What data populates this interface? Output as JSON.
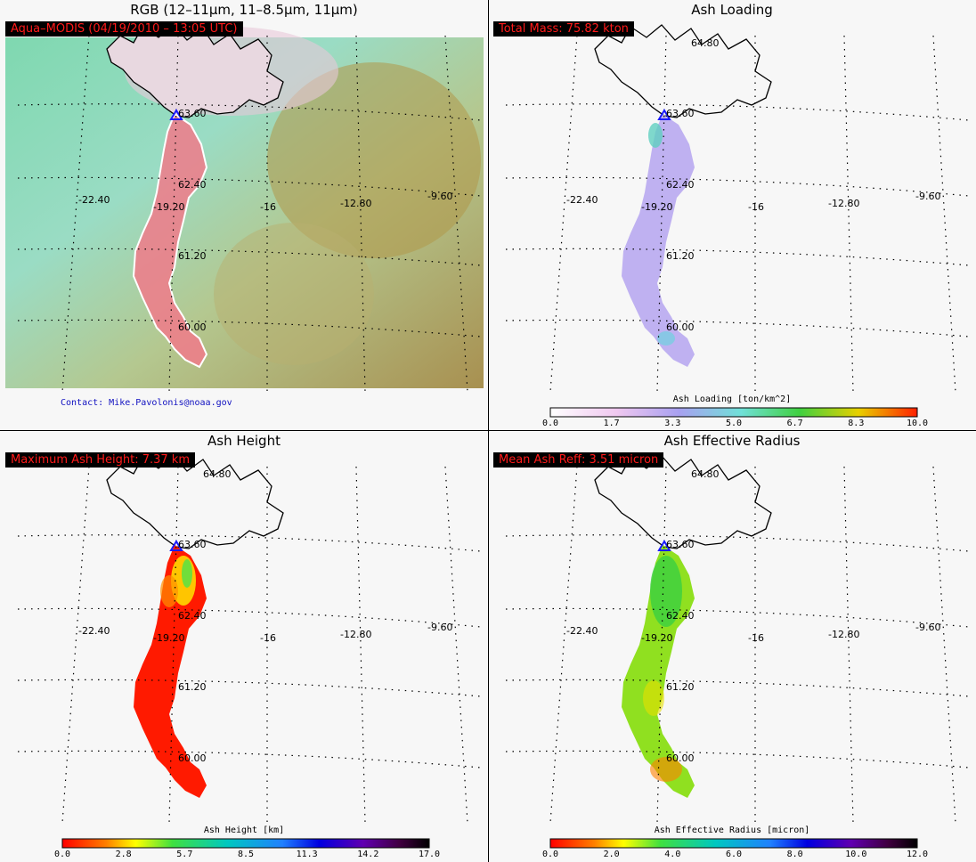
{
  "panels": {
    "rgb": {
      "title": "RGB (12–11μm, 11–8.5μm, 11μm)",
      "label": "Aqua–MODIS  (04/19/2010 – 13:05 UTC)",
      "contact": "Contact: Mike.Pavolonis@noaa.gov"
    },
    "loading": {
      "title": "Ash Loading",
      "label": "Total Mass: 75.82 kton",
      "colorbar_title": "Ash Loading [ton/km^2]",
      "colorbar_ticks": [
        "0.0",
        "1.7",
        "3.3",
        "5.0",
        "6.7",
        "8.3",
        "10.0"
      ]
    },
    "height": {
      "title": "Ash Height",
      "label": "Maximum Ash Height: 7.37 km",
      "colorbar_title": "Ash Height [km]",
      "colorbar_ticks": [
        "0.0",
        "2.8",
        "5.7",
        "8.5",
        "11.3",
        "14.2",
        "17.0"
      ]
    },
    "radius": {
      "title": "Ash Effective Radius",
      "label": "Mean Ash Reff: 3.51 micron",
      "colorbar_title": "Ash Effective Radius [micron]",
      "colorbar_ticks": [
        "0.0",
        "2.0",
        "4.0",
        "6.0",
        "8.0",
        "10.0",
        "12.0"
      ]
    }
  },
  "map": {
    "lat_labels": [
      "64.80",
      "63.60",
      "62.40",
      "61.20",
      "60.00"
    ],
    "lon_labels": [
      "-22.40",
      "-19.20",
      "-16",
      "-12.80",
      "-9.60"
    ],
    "volcano_marker": "triangle"
  },
  "colors": {
    "label_text": "#ff1a1a",
    "label_bg": "#000000",
    "contact_text": "#1010c0",
    "volcano": "#1a1aff"
  }
}
